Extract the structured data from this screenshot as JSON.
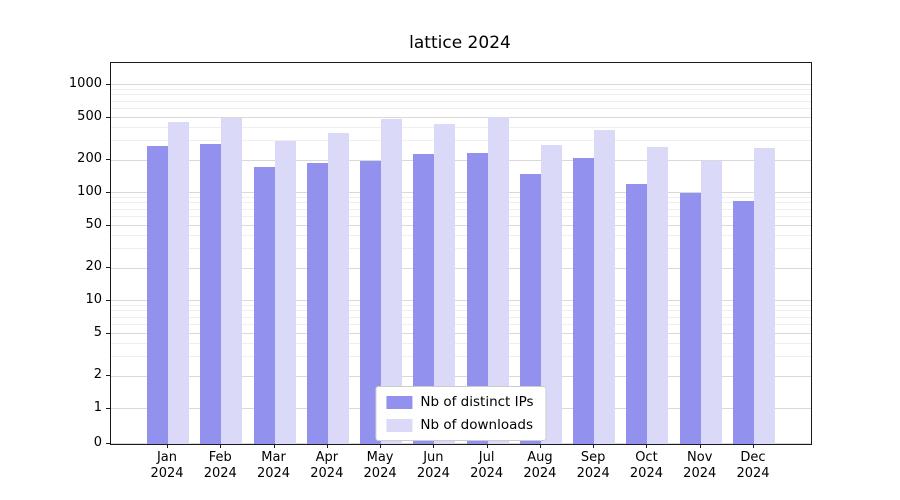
{
  "chart_data": {
    "type": "bar",
    "title": "lattice 2024",
    "categories": [
      "Jan",
      "Feb",
      "Mar",
      "Apr",
      "May",
      "Jun",
      "Jul",
      "Aug",
      "Sep",
      "Oct",
      "Nov",
      "Dec"
    ],
    "year_label": "2024",
    "series": [
      {
        "name": "Nb of distinct IPs",
        "color": "#9292ee",
        "values": [
          270,
          285,
          175,
          190,
          200,
          230,
          235,
          150,
          210,
          120,
          100,
          85
        ]
      },
      {
        "name": "Nb of downloads",
        "color": "#dadaf8",
        "values": [
          450,
          500,
          300,
          360,
          480,
          440,
          510,
          280,
          380,
          265,
          200,
          260
        ]
      }
    ],
    "yticks": [
      0,
      1,
      2,
      5,
      10,
      20,
      50,
      100,
      200,
      500,
      1000
    ],
    "yscale": "symlog",
    "ylim": [
      0,
      1600
    ],
    "grid": true,
    "legend_position": "lower center"
  }
}
